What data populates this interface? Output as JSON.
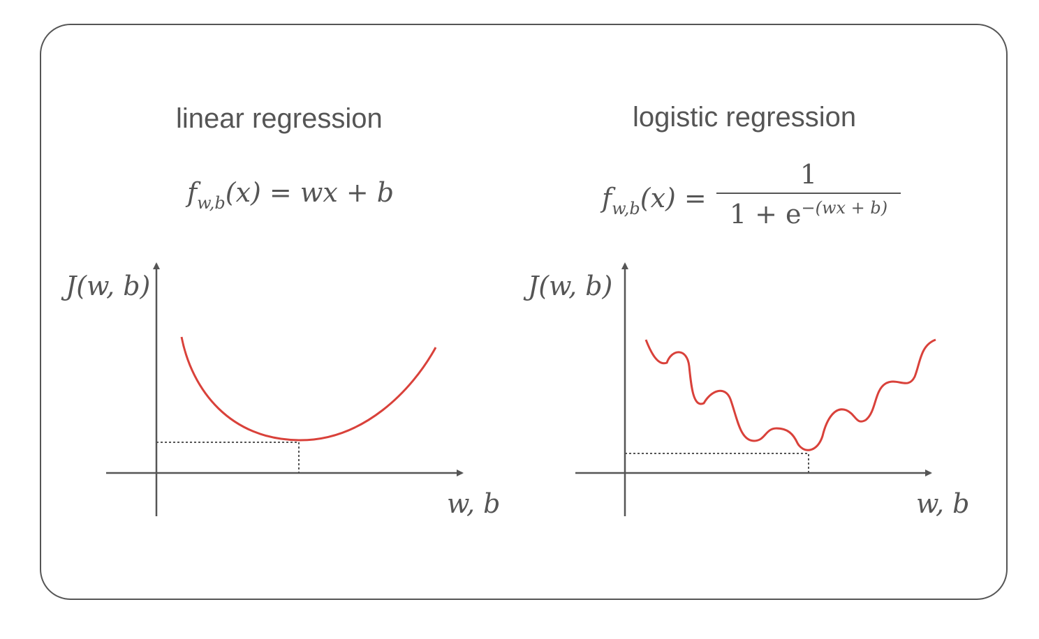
{
  "left": {
    "title": "linear regression",
    "formula_lhs": "f",
    "formula_sub": "w,b",
    "formula_rest": "(x) = wx + b",
    "ylabel": "J(w, b)",
    "xlabel": "w, b"
  },
  "right": {
    "title": "logistic regression",
    "formula_lhs": "f",
    "formula_sub": "w,b",
    "formula_mid": "(x) =",
    "numerator": "1",
    "den_base": "1 + e",
    "den_sup": "−(wx + b)",
    "ylabel": "J(w, b)",
    "xlabel": "w, b"
  },
  "colors": {
    "curve": "#d9413a",
    "axis": "#555555",
    "border": "#555555"
  }
}
